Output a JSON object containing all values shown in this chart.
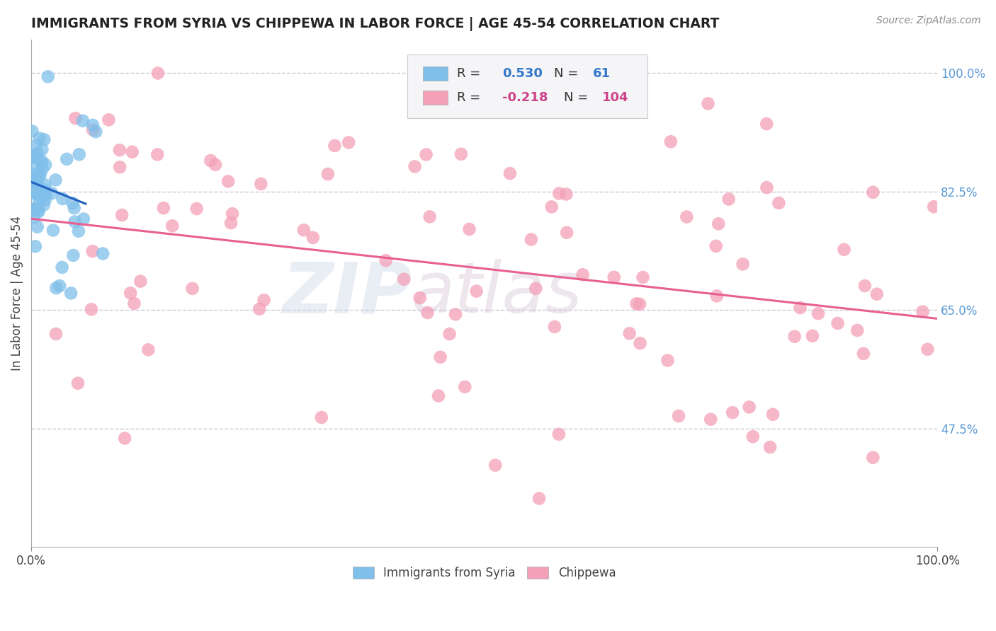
{
  "title": "IMMIGRANTS FROM SYRIA VS CHIPPEWA IN LABOR FORCE | AGE 45-54 CORRELATION CHART",
  "source": "Source: ZipAtlas.com",
  "ylabel": "In Labor Force | Age 45-54",
  "y_ticks": [
    0.475,
    0.65,
    0.825,
    1.0
  ],
  "y_tick_labels": [
    "47.5%",
    "65.0%",
    "82.5%",
    "100.0%"
  ],
  "syria_color": "#7fbfea",
  "chippewa_color": "#f4a0b8",
  "syria_trend_color": "#2060c0",
  "chippewa_trend_color": "#e86090",
  "legend_box_color": "#e8e8f0",
  "background_color": "#ffffff",
  "watermark_text": "ZIP",
  "watermark_text2": "atlas",
  "y_min": 0.3,
  "y_max": 1.05,
  "x_min": 0.0,
  "x_max": 1.0,
  "dot_size": 180,
  "dot_alpha": 0.75
}
